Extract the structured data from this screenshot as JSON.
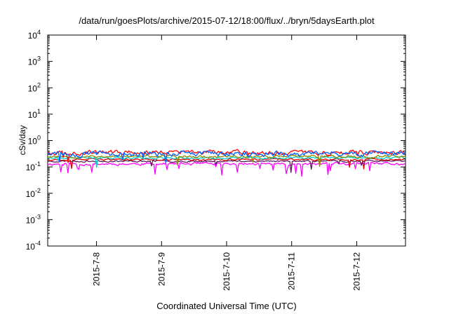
{
  "chart_data": {
    "type": "line",
    "title": "/data/run/goesPlots/archive/2015-07-12/18:00/flux/../bryn/5daysEarth.plot",
    "xlabel": "Coordinated Universal Time (UTC)",
    "ylabel": "cSv/day",
    "y_scale": "log",
    "ylim": [
      0.0001,
      10000
    ],
    "y_ticks": [
      {
        "value": 0.0001,
        "base": "10",
        "exp": "-4"
      },
      {
        "value": 0.001,
        "base": "10",
        "exp": "-3"
      },
      {
        "value": 0.01,
        "base": "10",
        "exp": "-2"
      },
      {
        "value": 0.1,
        "base": "10",
        "exp": "-1"
      },
      {
        "value": 1,
        "base": "10",
        "exp": "0"
      },
      {
        "value": 10,
        "base": "10",
        "exp": "1"
      },
      {
        "value": 100,
        "base": "10",
        "exp": "2"
      },
      {
        "value": 1000,
        "base": "10",
        "exp": "3"
      },
      {
        "value": 10000,
        "base": "10",
        "exp": "4"
      }
    ],
    "xlim": [
      "2015-07-07 06:00",
      "2015-07-12 18:00"
    ],
    "x_ticks": [
      {
        "value": "2015-07-08",
        "label": "2015-7-8"
      },
      {
        "value": "2015-07-09",
        "label": "2015-7-9"
      },
      {
        "value": "2015-07-10",
        "label": "2015-7-10"
      },
      {
        "value": "2015-07-11",
        "label": "2015-7-11"
      },
      {
        "value": "2015-07-12",
        "label": "2015-7-12"
      }
    ],
    "grid": false,
    "legend": "none",
    "series": [
      {
        "color": "#ff00ff",
        "level": 0.13,
        "spread": 0.13,
        "dips": 0.45,
        "seed": 11
      },
      {
        "color": "#5a1a5a",
        "level": 0.165,
        "spread": 0.08,
        "dips": 0.15,
        "seed": 23
      },
      {
        "color": "#e00000",
        "level": 0.19,
        "spread": 0.09,
        "dips": 0.1,
        "seed": 37
      },
      {
        "color": "#00d0d0",
        "level": 0.22,
        "spread": 0.1,
        "dips": 0.1,
        "seed": 41
      },
      {
        "color": "#8a8a00",
        "level": 0.25,
        "spread": 0.12,
        "dips": 0.1,
        "seed": 53
      },
      {
        "color": "#ff0000",
        "level": 0.36,
        "spread": 0.22,
        "dips": 0.1,
        "seed": 67
      },
      {
        "color": "#0060ff",
        "level": 0.32,
        "spread": 0.25,
        "dips": 0.1,
        "seed": 79
      }
    ]
  }
}
